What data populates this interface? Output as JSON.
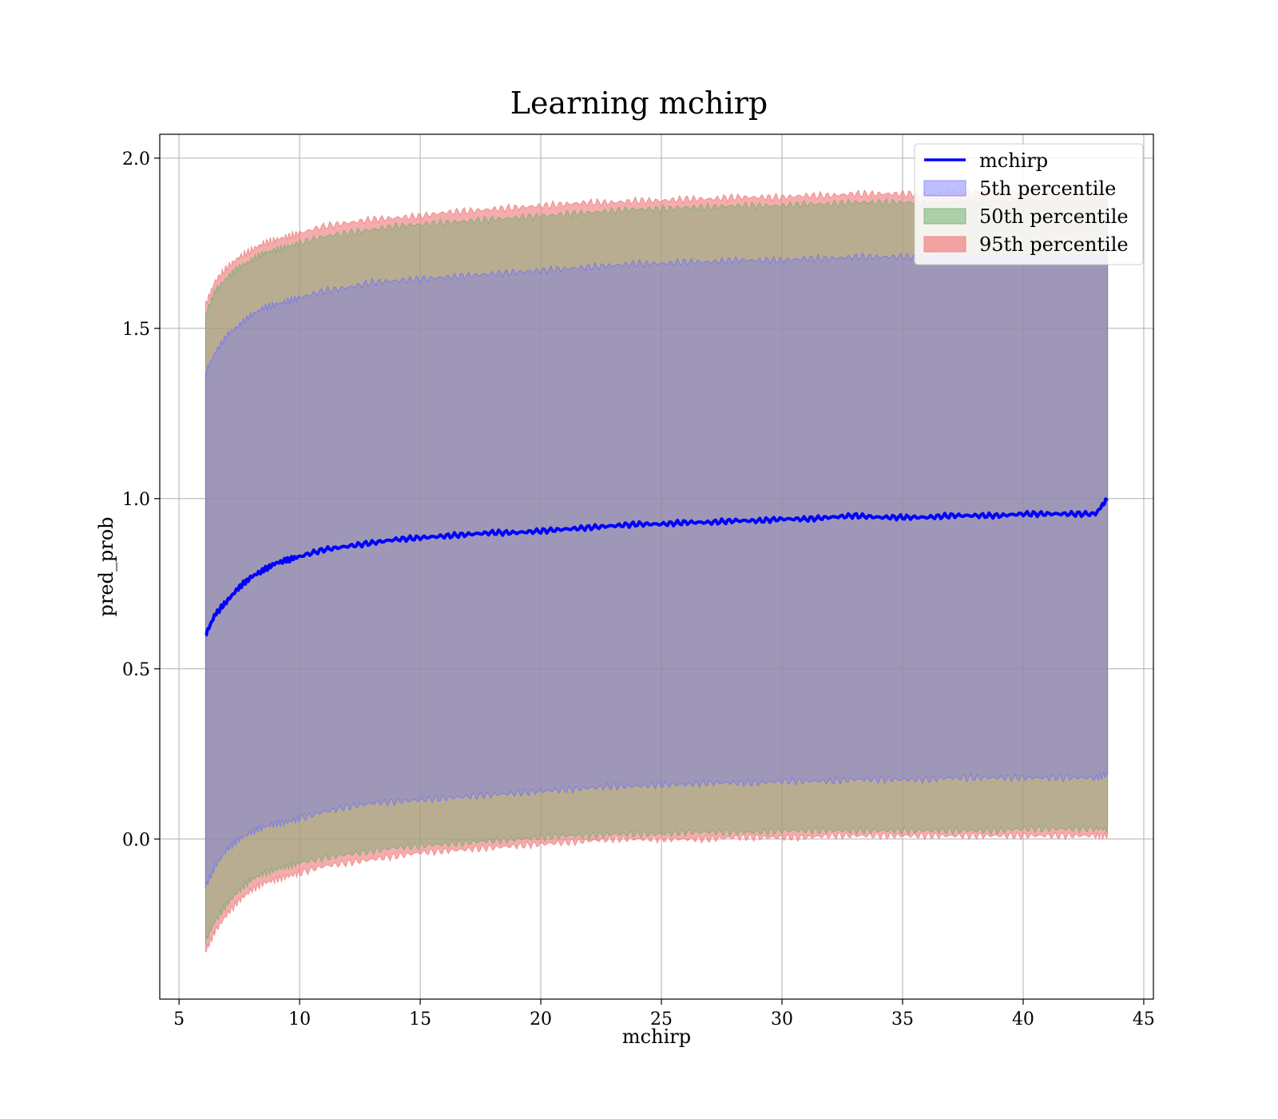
{
  "chart_data": {
    "type": "line",
    "title": "Learning mchirp",
    "xlabel": "mchirp",
    "ylabel": "pred_prob",
    "xlim": [
      4.2,
      45.4
    ],
    "ylim": [
      -0.47,
      2.07
    ],
    "xticks": [
      5,
      10,
      15,
      20,
      25,
      30,
      35,
      40,
      45
    ],
    "yticks": [
      0.0,
      0.5,
      1.0,
      1.5,
      2.0
    ],
    "xtick_labels": [
      "5",
      "10",
      "15",
      "20",
      "25",
      "30",
      "35",
      "40",
      "45"
    ],
    "ytick_labels": [
      "0.0",
      "0.5",
      "1.0",
      "1.5",
      "2.0"
    ],
    "grid": true,
    "legend_position": "top-right",
    "x": [
      6.1,
      6.5,
      7,
      7.5,
      8,
      8.5,
      9,
      9.5,
      10,
      11,
      12,
      13,
      14,
      15,
      16,
      17,
      18,
      19,
      20,
      21,
      22,
      23,
      24,
      25,
      26,
      27,
      28,
      29,
      30,
      31,
      32,
      33,
      34,
      35,
      36,
      37,
      38,
      39,
      40,
      41,
      42,
      43,
      43.5
    ],
    "line": {
      "name": "mchirp",
      "color": "#0000ff",
      "values": [
        0.6,
        0.66,
        0.7,
        0.74,
        0.77,
        0.79,
        0.81,
        0.82,
        0.83,
        0.85,
        0.86,
        0.87,
        0.88,
        0.885,
        0.89,
        0.895,
        0.9,
        0.9,
        0.905,
        0.91,
        0.915,
        0.92,
        0.925,
        0.925,
        0.93,
        0.93,
        0.935,
        0.935,
        0.94,
        0.94,
        0.945,
        0.95,
        0.945,
        0.945,
        0.945,
        0.95,
        0.95,
        0.95,
        0.955,
        0.955,
        0.955,
        0.955,
        1.0
      ]
    },
    "bands": [
      {
        "name": "95th percentile",
        "color": "#f08080",
        "lower": [
          -0.33,
          -0.27,
          -0.22,
          -0.18,
          -0.15,
          -0.13,
          -0.12,
          -0.11,
          -0.1,
          -0.08,
          -0.07,
          -0.06,
          -0.05,
          -0.04,
          -0.035,
          -0.03,
          -0.025,
          -0.02,
          -0.015,
          -0.01,
          -0.005,
          0.0,
          0.0,
          0.0,
          0.0,
          0.0,
          0.005,
          0.005,
          0.005,
          0.005,
          0.01,
          0.01,
          0.01,
          0.01,
          0.01,
          0.01,
          0.01,
          0.01,
          0.01,
          0.01,
          0.01,
          0.01,
          0.01
        ],
        "upper": [
          1.57,
          1.64,
          1.68,
          1.71,
          1.73,
          1.75,
          1.76,
          1.77,
          1.78,
          1.8,
          1.81,
          1.82,
          1.825,
          1.83,
          1.84,
          1.845,
          1.85,
          1.855,
          1.86,
          1.865,
          1.87,
          1.87,
          1.875,
          1.875,
          1.88,
          1.88,
          1.885,
          1.885,
          1.885,
          1.89,
          1.89,
          1.895,
          1.895,
          1.895,
          1.895,
          1.9,
          1.9,
          1.9,
          1.9,
          1.9,
          1.9,
          1.9,
          1.9
        ]
      },
      {
        "name": "50th percentile",
        "color": "#70b070",
        "lower": [
          -0.3,
          -0.24,
          -0.19,
          -0.15,
          -0.12,
          -0.1,
          -0.09,
          -0.08,
          -0.07,
          -0.055,
          -0.045,
          -0.035,
          -0.025,
          -0.02,
          -0.015,
          -0.01,
          -0.005,
          0.0,
          0.005,
          0.01,
          0.01,
          0.015,
          0.015,
          0.015,
          0.02,
          0.02,
          0.02,
          0.02,
          0.025,
          0.025,
          0.025,
          0.025,
          0.025,
          0.025,
          0.025,
          0.025,
          0.025,
          0.025,
          0.03,
          0.03,
          0.03,
          0.03,
          0.03
        ],
        "upper": [
          1.54,
          1.61,
          1.65,
          1.68,
          1.7,
          1.72,
          1.73,
          1.74,
          1.75,
          1.77,
          1.78,
          1.79,
          1.8,
          1.805,
          1.81,
          1.815,
          1.82,
          1.825,
          1.83,
          1.835,
          1.84,
          1.845,
          1.85,
          1.85,
          1.855,
          1.855,
          1.86,
          1.86,
          1.86,
          1.865,
          1.865,
          1.87,
          1.87,
          1.87,
          1.87,
          1.875,
          1.875,
          1.875,
          1.875,
          1.875,
          1.875,
          1.875,
          1.875
        ]
      },
      {
        "name": "5th percentile",
        "color": "#7070ff",
        "lower": [
          -0.14,
          -0.08,
          -0.03,
          0.0,
          0.02,
          0.035,
          0.045,
          0.05,
          0.06,
          0.08,
          0.095,
          0.105,
          0.11,
          0.115,
          0.12,
          0.125,
          0.13,
          0.135,
          0.14,
          0.145,
          0.15,
          0.155,
          0.155,
          0.16,
          0.16,
          0.165,
          0.165,
          0.165,
          0.17,
          0.17,
          0.17,
          0.175,
          0.175,
          0.175,
          0.175,
          0.18,
          0.18,
          0.18,
          0.18,
          0.18,
          0.18,
          0.18,
          0.19
        ],
        "upper": [
          1.37,
          1.43,
          1.48,
          1.51,
          1.54,
          1.56,
          1.57,
          1.58,
          1.59,
          1.61,
          1.62,
          1.635,
          1.64,
          1.645,
          1.65,
          1.655,
          1.66,
          1.665,
          1.67,
          1.675,
          1.68,
          1.685,
          1.69,
          1.69,
          1.695,
          1.695,
          1.7,
          1.7,
          1.7,
          1.705,
          1.705,
          1.71,
          1.71,
          1.71,
          1.71,
          1.71,
          1.71,
          1.71,
          1.71,
          1.71,
          1.71,
          1.71,
          1.71
        ]
      }
    ],
    "legend_entries": [
      "mchirp",
      "5th percentile",
      "50th percentile",
      "95th percentile"
    ]
  }
}
